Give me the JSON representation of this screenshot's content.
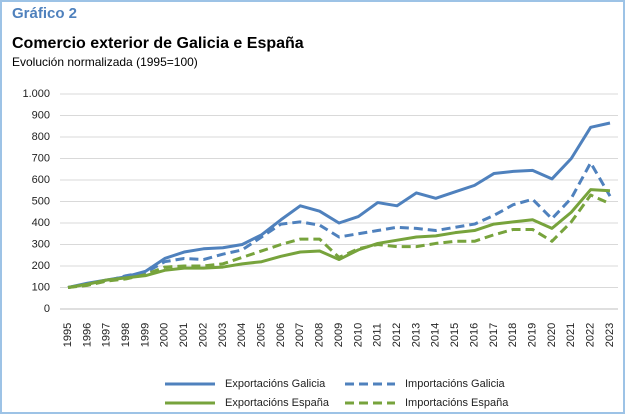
{
  "chart_data": {
    "type": "line",
    "label": "Gráfico 2",
    "title": "Comercio exterior de Galicia e España",
    "subtitle": "Evolución normalizada (1995=100)",
    "categories": [
      "1995",
      "1996",
      "1997",
      "1998",
      "1999",
      "2000",
      "2001",
      "2002",
      "2003",
      "2004",
      "2005",
      "2006",
      "2007",
      "2008",
      "2009",
      "2010",
      "2011",
      "2012",
      "2013",
      "2014",
      "2015",
      "2016",
      "2017",
      "2018",
      "2019",
      "2020",
      "2021",
      "2022",
      "2023"
    ],
    "series": [
      {
        "name": "Exportacións Galicia",
        "color": "#4f81bd",
        "line_style": "solid",
        "values": [
          100,
          120,
          135,
          150,
          175,
          235,
          265,
          280,
          285,
          300,
          345,
          415,
          480,
          455,
          400,
          430,
          495,
          480,
          540,
          515,
          545,
          575,
          630,
          640,
          645,
          605,
          700,
          845,
          865
        ]
      },
      {
        "name": "Importacións Galicia",
        "color": "#4f81bd",
        "line_style": "dashed",
        "values": [
          100,
          115,
          130,
          155,
          170,
          220,
          235,
          230,
          255,
          275,
          335,
          395,
          405,
          390,
          335,
          350,
          365,
          380,
          375,
          365,
          380,
          395,
          435,
          485,
          510,
          420,
          515,
          680,
          525
        ]
      },
      {
        "name": "Exportacións España",
        "color": "#77a33c",
        "line_style": "solid",
        "values": [
          100,
          115,
          135,
          145,
          155,
          180,
          190,
          190,
          195,
          210,
          220,
          245,
          265,
          270,
          230,
          275,
          305,
          320,
          335,
          340,
          355,
          365,
          395,
          405,
          415,
          375,
          450,
          555,
          550
        ]
      },
      {
        "name": "Importacións España",
        "color": "#77a33c",
        "line_style": "dashed",
        "values": [
          100,
          110,
          130,
          140,
          160,
          195,
          200,
          200,
          210,
          240,
          270,
          300,
          325,
          325,
          240,
          280,
          300,
          290,
          290,
          305,
          315,
          315,
          345,
          370,
          370,
          315,
          405,
          530,
          490
        ]
      }
    ],
    "ylim": [
      0,
      1000
    ],
    "yticks": [
      0,
      100,
      200,
      300,
      400,
      500,
      600,
      700,
      800,
      900,
      {
        "value": 1000,
        "label": "1.000"
      }
    ],
    "grid": true,
    "legend": "bottom"
  }
}
